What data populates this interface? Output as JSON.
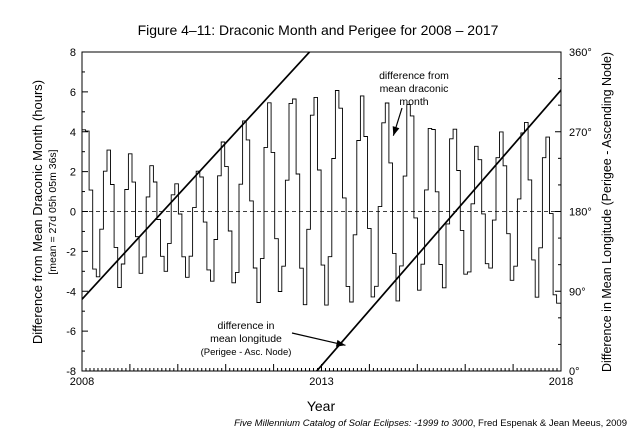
{
  "chart_data": {
    "type": "line",
    "title": "Figure 4–11: Draconic Month and Perigee for 2008 – 2017",
    "xlabel": "Year",
    "ylabel_left": "Difference from Mean Draconic Month (hours)",
    "ylabel_left_sub": "[mean = 27d 05h 05m 36s]",
    "ylabel_right": "Difference in Mean Longitude (Perigee - Ascending Node)",
    "xlim": [
      2008,
      2018
    ],
    "ylim": [
      -8,
      8
    ],
    "x_ticks": [
      2008,
      2013,
      2018
    ],
    "y_ticks": [
      -8,
      -6,
      -4,
      -2,
      0,
      2,
      4,
      6,
      8
    ],
    "y_right_ticks": [
      "0°",
      "90°",
      "180°",
      "270°",
      "360°"
    ],
    "y_right_values_deg": [
      0,
      90,
      180,
      270,
      360
    ],
    "zero_line": "dashed",
    "series": [
      {
        "style": "step",
        "peak_dates": [
          2008.1,
          2008.55,
          2009.0,
          2009.45,
          2009.95,
          2010.45,
          2010.95,
          2011.4,
          2011.9,
          2012.4,
          2012.85,
          2013.35,
          2013.85,
          2014.35,
          2014.85,
          2015.3,
          2015.75,
          2016.25,
          2016.75,
          2017.25,
          2017.7
        ],
        "peak_values": [
          4.1,
          3.1,
          2.9,
          2.3,
          1.5,
          2.2,
          3.5,
          4.6,
          5.5,
          6.1,
          6.1,
          6.3,
          5.8,
          5.6,
          5.8,
          4.6,
          4.4,
          3.4,
          4.0,
          4.7,
          4.0
        ],
        "trough_dates": [
          2008.3,
          2008.8,
          2009.25,
          2009.75,
          2010.2,
          2010.7,
          2011.2,
          2011.7,
          2012.15,
          2012.65,
          2013.1,
          2013.6,
          2014.1,
          2014.6,
          2015.05,
          2015.55,
          2016.05,
          2016.5,
          2017.0,
          2017.5,
          2017.9
        ],
        "trough_values": [
          -3.6,
          -3.9,
          -3.2,
          -3.0,
          -3.3,
          -3.6,
          -3.9,
          -4.6,
          -4.1,
          -4.7,
          -4.7,
          -4.8,
          -4.6,
          -4.5,
          -4.0,
          -3.9,
          -3.5,
          -3.1,
          -3.6,
          -4.3,
          -4.6
        ]
      },
      {
        "name_label": "difference in mean longitude",
        "name_sub": "(Perigee - Asc. Node)",
        "units": "degrees",
        "segments": [
          {
            "x": [
              2008.0,
              2012.75
            ],
            "y_deg": [
              81,
              360
            ]
          },
          {
            "x": [
              2012.9,
              2018.0
            ],
            "y_deg": [
              0,
              317
            ]
          }
        ]
      }
    ],
    "annotations": [
      {
        "text": [
          "difference from",
          "mean draconic",
          "month"
        ],
        "points_to": {
          "x": 2014.5,
          "y": 3.8
        }
      },
      {
        "text": [
          "difference in",
          "mean longitude",
          "(Perigee - Asc. Node)"
        ],
        "points_to": {
          "x": 2013.5,
          "y_deg": 29
        }
      }
    ]
  },
  "credit": {
    "italic": "Five Millennium Catalog of Solar Eclipses: -1999 to 3000",
    "plain": ", Fred Espenak & Jean Meeus, 2009"
  }
}
